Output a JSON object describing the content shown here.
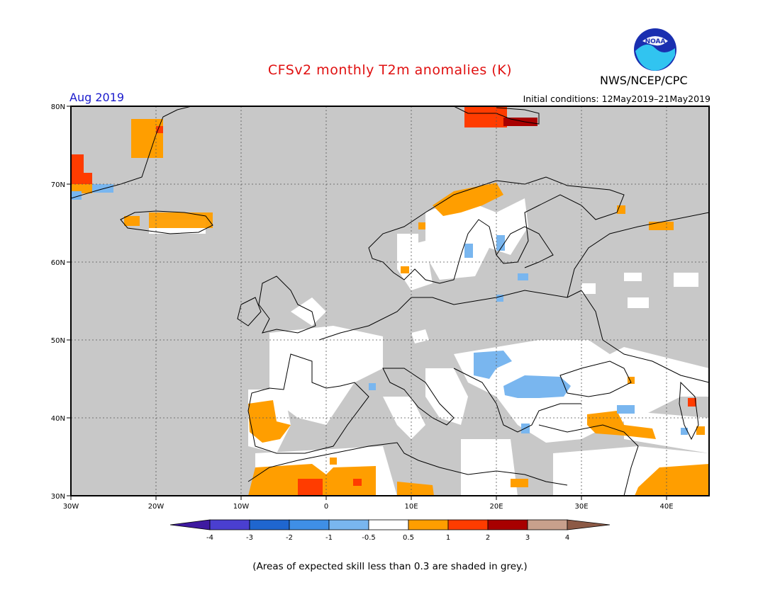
{
  "title": "CFSv2 monthly T2m anomalies (K)",
  "agency": "NWS/NCEP/CPC",
  "period": "Aug 2019",
  "initial_conditions": "Initial conditions: 12May2019–21May2019",
  "note": "(Areas of expected skill less than 0.3 are shaded in grey.)",
  "logo_text": "NOAA",
  "map": {
    "lat_labels": [
      "80N",
      "70N",
      "60N",
      "50N",
      "40N",
      "30N"
    ],
    "lon_labels": [
      "30W",
      "20W",
      "10W",
      "0",
      "10E",
      "20E",
      "30E",
      "40E"
    ],
    "low_skill_color": "#c8c8c8",
    "coastline_color": "#000000"
  },
  "colorbar": {
    "labels": [
      "-4",
      "-3",
      "-2",
      "-1",
      "-0.5",
      "0.5",
      "1",
      "2",
      "3",
      "4"
    ],
    "colors": [
      "#3e1aa0",
      "#4a3fd0",
      "#1f66cf",
      "#3f8fe6",
      "#79b6ef",
      "#ffffff",
      "#ff9e00",
      "#ff3c00",
      "#a80000",
      "#c8a08c",
      "#8c5a46"
    ]
  }
}
